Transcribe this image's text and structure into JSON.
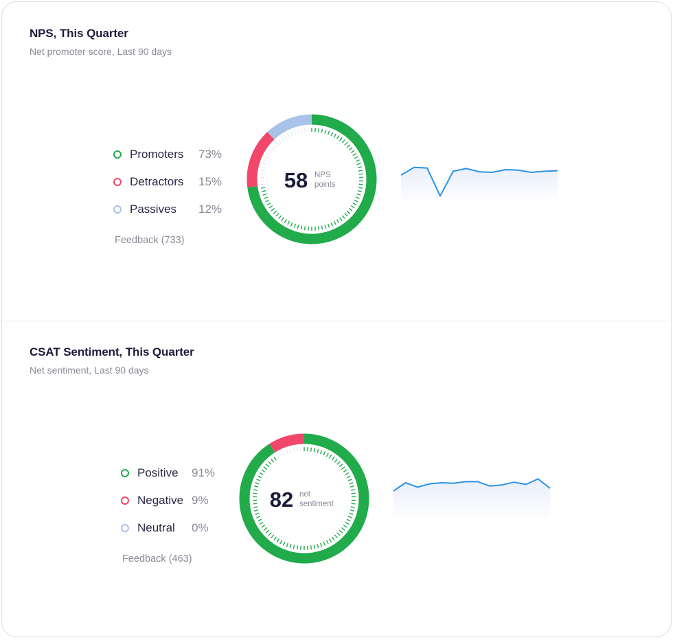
{
  "chart_data": [
    {
      "type": "pie",
      "title": "NPS, This Quarter",
      "subtitle": "Net promoter score, Last 90 days",
      "categories": [
        "Promoters",
        "Detractors",
        "Passives"
      ],
      "values": [
        73,
        15,
        12
      ],
      "value_labels": [
        "73%",
        "15%",
        "12%"
      ],
      "colors": [
        "#21ab4a",
        "#f2476a",
        "#a9c3e8"
      ],
      "center_value": "58",
      "center_unit_line1": "NPS",
      "center_unit_line2": "points",
      "feedback": "Feedback (733)",
      "trend": {
        "type": "area",
        "color": "#2b93e6",
        "x": [
          1,
          2,
          3,
          4,
          5,
          6,
          7,
          8,
          9,
          10,
          11,
          12,
          13
        ],
        "values": [
          50,
          64,
          63,
          12,
          57,
          62,
          56,
          55,
          60,
          59,
          55,
          57,
          58
        ],
        "ylim": [
          0,
          100
        ]
      }
    },
    {
      "type": "pie",
      "title": "CSAT Sentiment, This Quarter",
      "subtitle": "Net sentiment, Last 90 days",
      "categories": [
        "Positive",
        "Negative",
        "Neutral"
      ],
      "values": [
        91,
        9,
        0
      ],
      "value_labels": [
        "91%",
        "9%",
        "0%"
      ],
      "colors": [
        "#21ab4a",
        "#f2476a",
        "#a9c3e8"
      ],
      "center_value": "82",
      "center_unit_line1": "net",
      "center_unit_line2": "sentiment",
      "feedback": "Feedback (463)",
      "trend": {
        "type": "area",
        "color": "#2b93e6",
        "x": [
          1,
          2,
          3,
          4,
          5,
          6,
          7,
          8,
          9,
          10,
          11,
          12,
          13,
          14
        ],
        "values": [
          55,
          70,
          62,
          68,
          70,
          69,
          72,
          72,
          64,
          66,
          71,
          67,
          77,
          60
        ],
        "ylim": [
          0,
          100
        ]
      }
    }
  ]
}
